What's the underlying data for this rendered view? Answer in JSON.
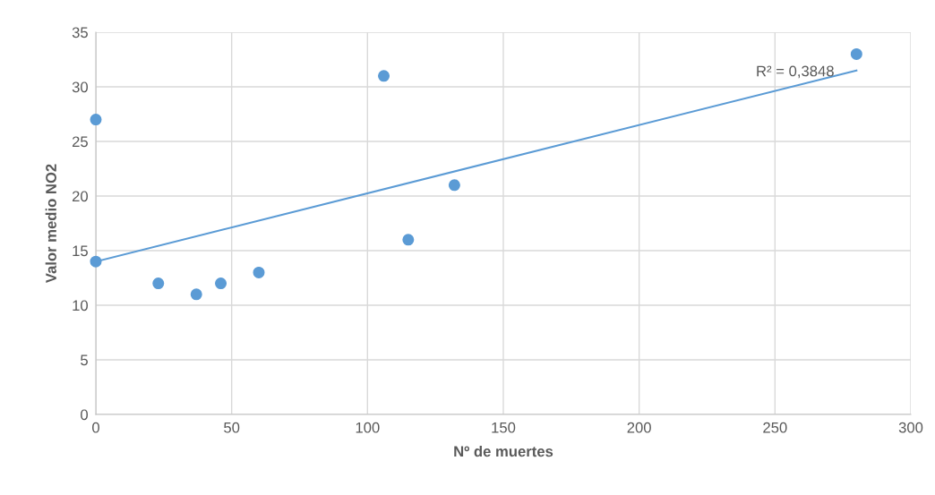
{
  "chart_data": {
    "type": "scatter",
    "xlabel": "Nº de muertes",
    "ylabel": "Valor medio NO2",
    "series": [
      {
        "color": "#5b9bd5",
        "marker": "circle",
        "x": [
          0,
          0,
          23,
          37,
          46,
          60,
          106,
          115,
          132,
          280
        ],
        "values": [
          27,
          14,
          12,
          11,
          12,
          13,
          31,
          16,
          21,
          33
        ]
      },
      {
        "type": "line",
        "color": "#5b9bd5",
        "marker": "none",
        "x": [
          0,
          280
        ],
        "values": [
          14.0,
          31.5
        ]
      }
    ],
    "annotations": [
      "R² = 0,3848"
    ],
    "xlim": [
      0,
      300
    ],
    "xticks": [
      0,
      50,
      100,
      150,
      200,
      250,
      300
    ],
    "ylim": [
      0,
      35
    ],
    "yticks": [
      0,
      5,
      10,
      15,
      20,
      25,
      30,
      35
    ],
    "grid": true
  }
}
